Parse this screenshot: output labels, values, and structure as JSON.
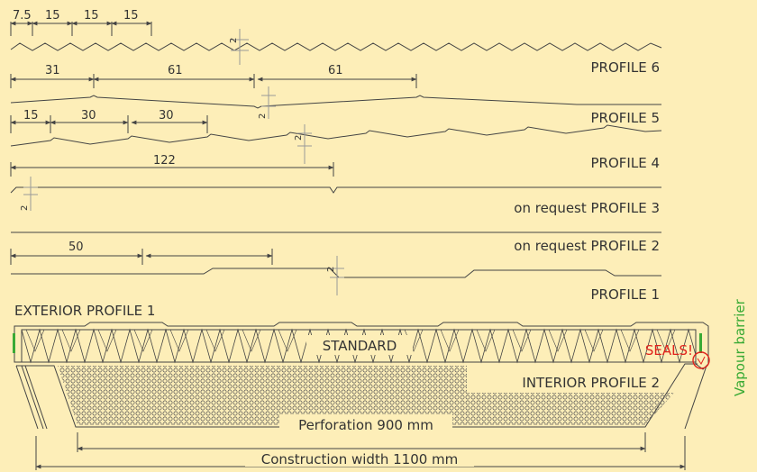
{
  "colors": {
    "background": "#fdeeb8",
    "line": "#444444",
    "dimension": "#999999",
    "seal": "#e0231c",
    "vapour": "#3aaa35"
  },
  "profiles": {
    "p6": "PROFILE 6",
    "p5": "PROFILE 5",
    "p4": "PROFILE 4",
    "p3": "on request PROFILE 3",
    "p2": "on request PROFILE 2",
    "p1": "PROFILE 1"
  },
  "dims": {
    "p6_a": "7.5",
    "p6_b": "15",
    "p6_c": "15",
    "p6_d": "15",
    "p6_h": "2",
    "p5_a": "31",
    "p5_b": "61",
    "p5_c": "61",
    "p5_h": "2",
    "p4_a": "15",
    "p4_b": "30",
    "p4_c": "30",
    "p4_h": "2",
    "p3_a": "122",
    "p3_h": "2",
    "p1_a": "50",
    "p1_h": "2"
  },
  "panel": {
    "exterior": "EXTERIOR PROFILE 1",
    "interior": "INTERIOR PROFILE 2",
    "core": "STANDARD",
    "seals": "SEALS!",
    "perforation": "Perforation 900 mm",
    "width": "Construction width 1100 mm",
    "vapour": "Vapour barrier"
  }
}
